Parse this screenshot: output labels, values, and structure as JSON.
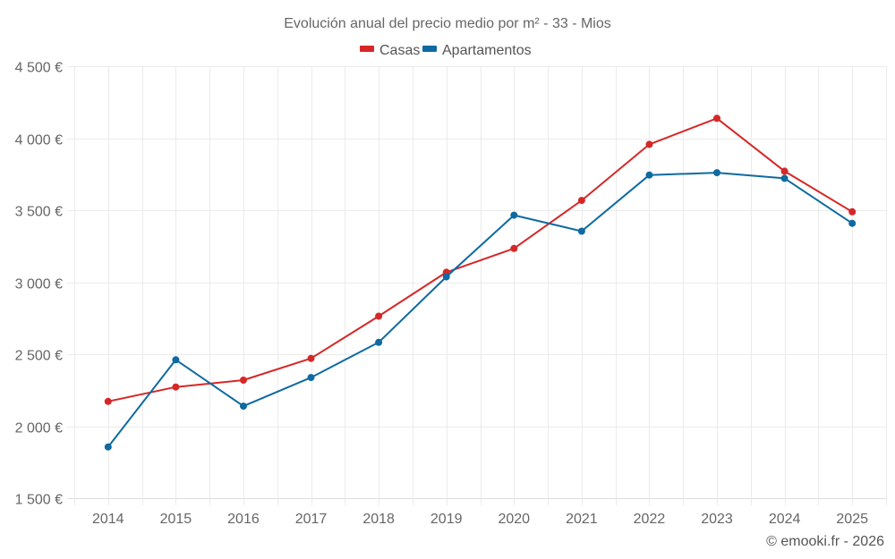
{
  "chart_data": {
    "type": "line",
    "title": "Evolución anual del precio medio por m² - 33 - Mios",
    "xlabel": "",
    "ylabel": "",
    "categories": [
      "2014",
      "2015",
      "2016",
      "2017",
      "2018",
      "2019",
      "2020",
      "2021",
      "2022",
      "2023",
      "2024",
      "2025"
    ],
    "ylim": [
      1500,
      4500
    ],
    "yticks": [
      1500,
      2000,
      2500,
      3000,
      3500,
      4000,
      4500
    ],
    "ytick_labels": [
      "1 500 €",
      "2 000 €",
      "2 500 €",
      "3 000 €",
      "3 500 €",
      "4 000 €",
      "4 500 €"
    ],
    "grid": true,
    "legend_position": "top-center",
    "series": [
      {
        "name": "Casas",
        "color": "#d62728",
        "values": [
          2172,
          2272,
          2320,
          2471,
          2764,
          3069,
          3234,
          3568,
          3957,
          4138,
          3771,
          3489
        ]
      },
      {
        "name": "Apartamentos",
        "color": "#0e6aa0",
        "values": [
          1856,
          2461,
          2139,
          2338,
          2582,
          3037,
          3465,
          3354,
          3744,
          3760,
          3721,
          3409
        ]
      }
    ],
    "credit": "© emooki.fr - 2026"
  }
}
